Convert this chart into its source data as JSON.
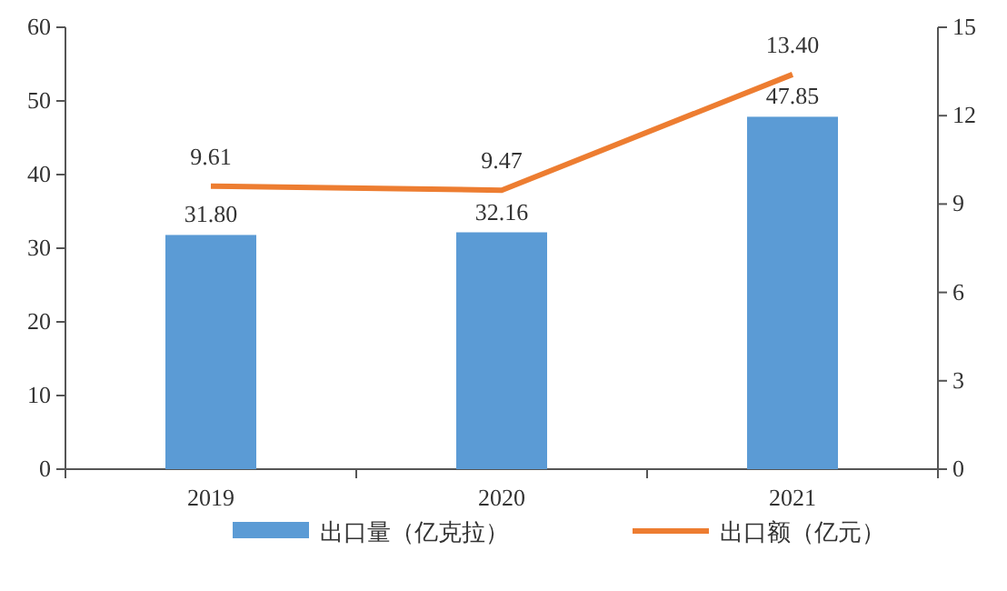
{
  "chart_data": {
    "type": "bar",
    "categories": [
      "2019",
      "2020",
      "2021"
    ],
    "series": [
      {
        "name": "出口量（亿克拉）",
        "color": "#5b9bd5",
        "values": [
          31.8,
          32.16,
          47.85
        ],
        "value_labels": [
          "31.80",
          "32.16",
          "47.85"
        ]
      },
      {
        "name": "出口额（亿元）",
        "type": "line",
        "axis": "y2",
        "color": "#ed7d31",
        "values": [
          9.61,
          9.47,
          13.4
        ],
        "value_labels": [
          "9.61",
          "9.47",
          "13.40"
        ]
      }
    ],
    "ylim": [
      0,
      60
    ],
    "yticks": [
      0,
      10,
      20,
      30,
      40,
      50,
      60
    ],
    "y2lim": [
      0,
      15
    ],
    "y2ticks": [
      0,
      3,
      6,
      9,
      12,
      15
    ],
    "legend": "bottom"
  }
}
